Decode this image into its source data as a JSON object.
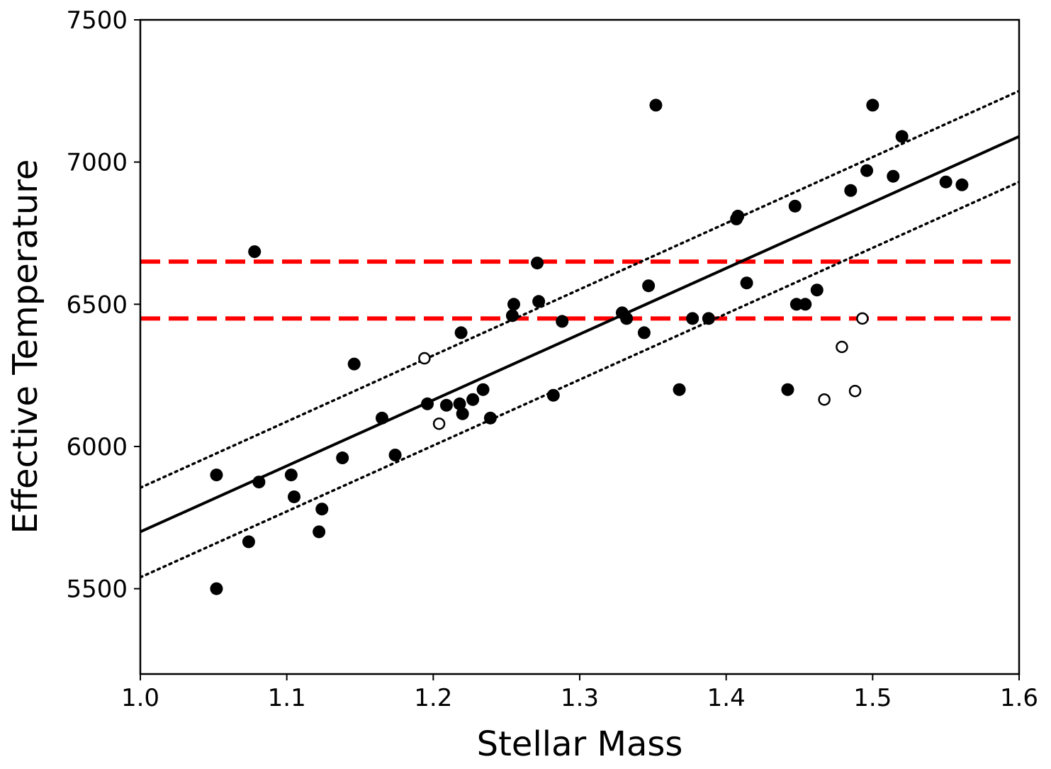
{
  "chart_data": {
    "type": "scatter",
    "title": "",
    "xlabel": "Stellar Mass",
    "ylabel": "Effective Temperature",
    "xlim": [
      1.0,
      1.6
    ],
    "ylim": [
      5200,
      7500
    ],
    "xticks": [
      "1.0",
      "1.1",
      "1.2",
      "1.3",
      "1.4",
      "1.5",
      "1.6"
    ],
    "xtick_values": [
      1.0,
      1.1,
      1.2,
      1.3,
      1.4,
      1.5,
      1.6
    ],
    "yticks": [
      "5500",
      "6000",
      "6500",
      "7000",
      "7500"
    ],
    "ytick_values": [
      5500,
      6000,
      6500,
      7000,
      7500
    ],
    "grid": false,
    "colors": {
      "points": "#000000",
      "fit_line": "#000000",
      "band_lines": "#000000",
      "reference_lines": "#ff0000"
    },
    "series": [
      {
        "name": "filled points",
        "marker": "filled-circle",
        "points": [
          [
            1.052,
            5900
          ],
          [
            1.052,
            5500
          ],
          [
            1.074,
            5665
          ],
          [
            1.078,
            6685
          ],
          [
            1.081,
            5875
          ],
          [
            1.103,
            5900
          ],
          [
            1.105,
            5823
          ],
          [
            1.122,
            5700
          ],
          [
            1.124,
            5780
          ],
          [
            1.138,
            5960
          ],
          [
            1.146,
            6290
          ],
          [
            1.165,
            6100
          ],
          [
            1.174,
            5970
          ],
          [
            1.196,
            6150
          ],
          [
            1.209,
            6145
          ],
          [
            1.218,
            6150
          ],
          [
            1.219,
            6400
          ],
          [
            1.22,
            6115
          ],
          [
            1.227,
            6165
          ],
          [
            1.234,
            6200
          ],
          [
            1.239,
            6100
          ],
          [
            1.254,
            6460
          ],
          [
            1.255,
            6500
          ],
          [
            1.271,
            6645
          ],
          [
            1.272,
            6510
          ],
          [
            1.282,
            6180
          ],
          [
            1.288,
            6440
          ],
          [
            1.329,
            6470
          ],
          [
            1.332,
            6450
          ],
          [
            1.344,
            6400
          ],
          [
            1.347,
            6565
          ],
          [
            1.352,
            7200
          ],
          [
            1.368,
            6200
          ],
          [
            1.377,
            6450
          ],
          [
            1.388,
            6450
          ],
          [
            1.407,
            6800
          ],
          [
            1.408,
            6810
          ],
          [
            1.414,
            6575
          ],
          [
            1.442,
            6200
          ],
          [
            1.447,
            6845
          ],
          [
            1.448,
            6500
          ],
          [
            1.454,
            6500
          ],
          [
            1.462,
            6550
          ],
          [
            1.485,
            6900
          ],
          [
            1.496,
            6970
          ],
          [
            1.5,
            7200
          ],
          [
            1.514,
            6950
          ],
          [
            1.52,
            7090
          ],
          [
            1.55,
            6930
          ],
          [
            1.561,
            6920
          ]
        ]
      },
      {
        "name": "open points",
        "marker": "open-circle",
        "points": [
          [
            1.194,
            6310
          ],
          [
            1.204,
            6080
          ],
          [
            1.467,
            6165
          ],
          [
            1.479,
            6350
          ],
          [
            1.488,
            6195
          ],
          [
            1.493,
            6450
          ]
        ]
      }
    ],
    "fit_line": {
      "style": "solid",
      "x": [
        1.0,
        1.6
      ],
      "y": [
        5700,
        7090
      ]
    },
    "upper_band": {
      "style": "dotted",
      "x": [
        1.0,
        1.6
      ],
      "y": [
        5855,
        7250
      ]
    },
    "lower_band": {
      "style": "dotted",
      "x": [
        1.0,
        1.6
      ],
      "y": [
        5540,
        6930
      ]
    },
    "horizontal_lines": [
      {
        "style": "dashed",
        "color": "red",
        "y": 6650
      },
      {
        "style": "dashed",
        "color": "red",
        "y": 6450
      }
    ]
  }
}
